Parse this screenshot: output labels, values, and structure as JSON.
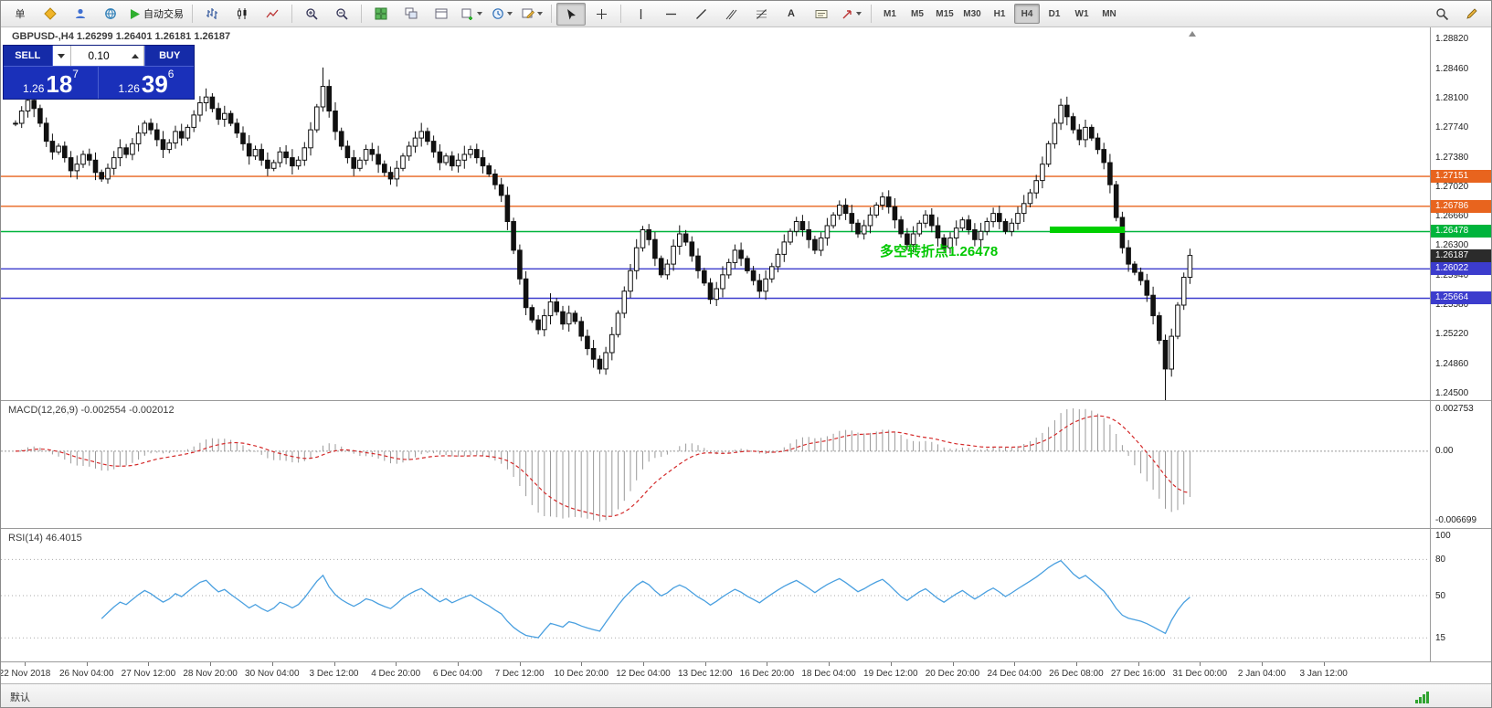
{
  "toolbar": {
    "new_order_label": "单",
    "autotrade_label": "自动交易",
    "timeframes": [
      "M1",
      "M5",
      "M15",
      "M30",
      "H1",
      "H4",
      "D1",
      "W1",
      "MN"
    ],
    "active_timeframe": "H4"
  },
  "chart": {
    "symbol_line": "GBPUSD-,H4  1.26299 1.26401 1.26181 1.26187",
    "trade_panel": {
      "sell_label": "SELL",
      "buy_label": "BUY",
      "lot_value": "0.10",
      "sell_price_prefix": "1.26",
      "sell_price_big": "18",
      "sell_price_sup": "7",
      "buy_price_prefix": "1.26",
      "buy_price_big": "39",
      "buy_price_sup": "6"
    },
    "annotation": {
      "text": "多空转折点1.26478",
      "color": "#00c800"
    },
    "price_axis": [
      "1.28820",
      "1.28460",
      "1.28100",
      "1.27740",
      "1.27380",
      "1.27020",
      "1.26660",
      "1.26300",
      "1.25940",
      "1.25580",
      "1.25220",
      "1.24860",
      "1.24500"
    ],
    "levels": [
      {
        "price": 1.27151,
        "label": "1.27151",
        "color": "#e8641e"
      },
      {
        "price": 1.26786,
        "label": "1.26786",
        "color": "#e8641e"
      },
      {
        "price": 1.26478,
        "label": "1.26478",
        "color": "#00b43c"
      },
      {
        "price": 1.26022,
        "label": "1.26022",
        "color": "#3c3ccd"
      },
      {
        "price": 1.25664,
        "label": "1.25664",
        "color": "#3c3ccd"
      }
    ],
    "current_price": {
      "label": "1.26187",
      "bg": "#2b2b2b"
    }
  },
  "macd": {
    "label": "MACD(12,26,9) -0.002554 -0.002012",
    "axis_top": "0.002753",
    "axis_zero": "0.00",
    "axis_bottom": "-0.006699"
  },
  "rsi": {
    "label": "RSI(14) 46.4015",
    "axis": [
      {
        "text": "100",
        "value": 100
      },
      {
        "text": "80",
        "value": 80
      },
      {
        "text": "50",
        "value": 50
      },
      {
        "text": "15",
        "value": 15
      }
    ],
    "levels": [
      80,
      50,
      15
    ]
  },
  "time_axis": [
    "22 Nov 2018",
    "26 Nov 04:00",
    "27 Nov 12:00",
    "28 Nov 20:00",
    "30 Nov 04:00",
    "3 Dec 12:00",
    "4 Dec 20:00",
    "6 Dec 04:00",
    "7 Dec 12:00",
    "10 Dec 20:00",
    "12 Dec 04:00",
    "13 Dec 12:00",
    "16 Dec 20:00",
    "18 Dec 04:00",
    "19 Dec 12:00",
    "20 Dec 20:00",
    "24 Dec 04:00",
    "26 Dec 08:00",
    "27 Dec 16:00",
    "31 Dec 00:00",
    "2 Jan 04:00",
    "3 Jan 12:00"
  ],
  "status_bar": {
    "template_label": "默认"
  },
  "chart_data": {
    "type": "candlestick",
    "symbol": "GBPUSD-",
    "timeframe": "H4",
    "title": "GBPUSD- H4 with MACD(12,26,9) and RSI(14)",
    "ylim": [
      1.2442,
      1.2897
    ],
    "current": 1.26187,
    "ohlc_mode": "closes-derived",
    "default_wick": 0.0007,
    "closes": [
      1.278,
      1.2795,
      1.2808,
      1.2798,
      1.278,
      1.2758,
      1.2745,
      1.2752,
      1.2738,
      1.2722,
      1.273,
      1.2742,
      1.2735,
      1.272,
      1.2712,
      1.2725,
      1.2738,
      1.275,
      1.2742,
      1.2755,
      1.2768,
      1.278,
      1.2772,
      1.276,
      1.2748,
      1.2756,
      1.277,
      1.2762,
      1.2775,
      1.279,
      1.2805,
      1.2812,
      1.2798,
      1.2785,
      1.2792,
      1.278,
      1.2768,
      1.2755,
      1.274,
      1.2748,
      1.2735,
      1.2725,
      1.2732,
      1.2745,
      1.2738,
      1.2728,
      1.2735,
      1.275,
      1.2772,
      1.28,
      1.2825,
      1.2795,
      1.277,
      1.2752,
      1.2738,
      1.2725,
      1.2735,
      1.2748,
      1.2742,
      1.273,
      1.272,
      1.2712,
      1.2725,
      1.274,
      1.2752,
      1.2762,
      1.277,
      1.2758,
      1.2745,
      1.2732,
      1.274,
      1.2728,
      1.2735,
      1.2742,
      1.2748,
      1.2738,
      1.2728,
      1.2718,
      1.2705,
      1.2692,
      1.266,
      1.2625,
      1.259,
      1.2555,
      1.254,
      1.2528,
      1.2545,
      1.2562,
      1.255,
      1.2535,
      1.2548,
      1.2538,
      1.252,
      1.2505,
      1.2492,
      1.248,
      1.25,
      1.2522,
      1.2548,
      1.2575,
      1.26,
      1.2628,
      1.265,
      1.2638,
      1.2615,
      1.2595,
      1.2608,
      1.263,
      1.2645,
      1.2635,
      1.2618,
      1.26,
      1.2585,
      1.2565,
      1.2578,
      1.2595,
      1.261,
      1.2625,
      1.2615,
      1.26,
      1.2588,
      1.2575,
      1.259,
      1.2605,
      1.262,
      1.2635,
      1.2648,
      1.266,
      1.265,
      1.2638,
      1.2625,
      1.264,
      1.2655,
      1.2668,
      1.268,
      1.267,
      1.2658,
      1.2645,
      1.2655,
      1.2668,
      1.268,
      1.269,
      1.2678,
      1.2662,
      1.2645,
      1.2632,
      1.2645,
      1.2658,
      1.2668,
      1.2655,
      1.264,
      1.2628,
      1.264,
      1.2652,
      1.2662,
      1.265,
      1.2638,
      1.2648,
      1.266,
      1.267,
      1.266,
      1.2648,
      1.2658,
      1.267,
      1.2682,
      1.2695,
      1.271,
      1.273,
      1.2755,
      1.278,
      1.2802,
      1.2788,
      1.2772,
      1.276,
      1.2775,
      1.2762,
      1.2748,
      1.2732,
      1.2705,
      1.2665,
      1.2628,
      1.2608,
      1.2598,
      1.2588,
      1.257,
      1.2545,
      1.2515,
      1.248,
      1.252,
      1.2558,
      1.2592,
      1.26187
    ],
    "specials": {
      "50": {
        "high": 1.2848
      },
      "95": {
        "low": 1.2474
      },
      "187": {
        "low": 1.2441
      }
    },
    "indicators": [
      {
        "name": "MACD",
        "params": [
          12,
          26,
          9
        ],
        "values": [
          -0.002554,
          -0.002012
        ]
      },
      {
        "name": "RSI",
        "params": [
          14
        ],
        "value": 46.4015
      }
    ]
  }
}
